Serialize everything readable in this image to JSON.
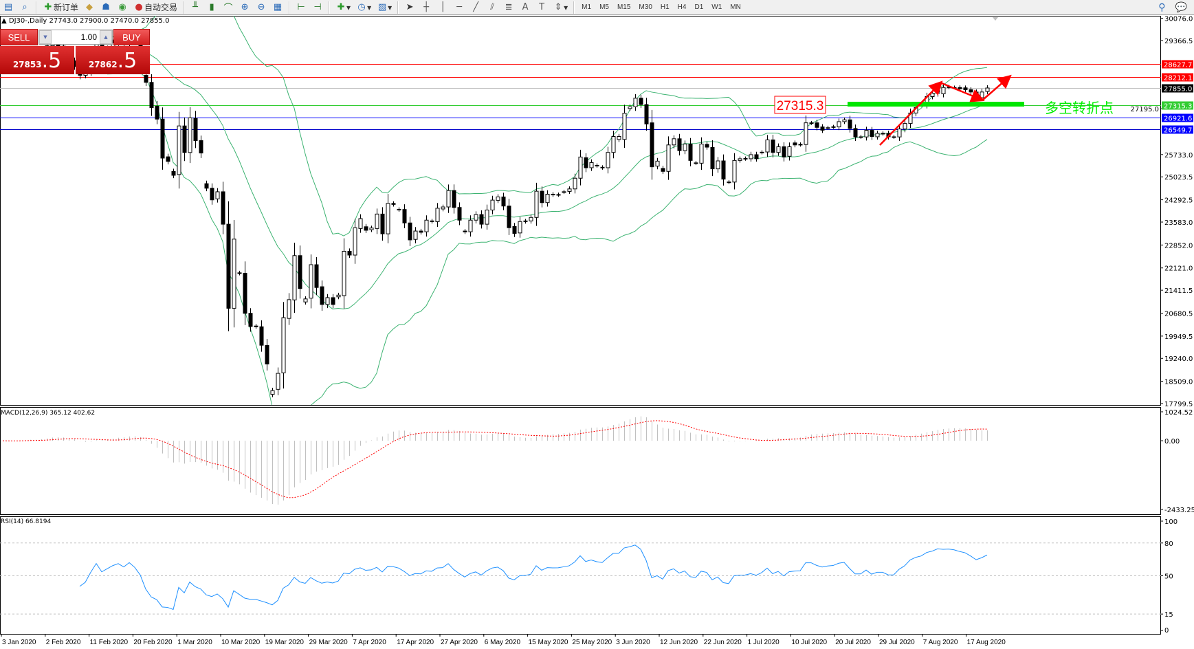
{
  "toolbar": {
    "new_order": "新订单",
    "auto_trading": "自动交易",
    "icons_left": [
      "new-chart-icon",
      "navigator-icon"
    ],
    "icons_mid": [
      "metaeditor-icon",
      "terminal-icon",
      "signals-icon"
    ],
    "icons_chart": [
      "bar-chart-icon",
      "candlestick-icon",
      "line-chart-icon",
      "zoom-in-icon",
      "zoom-out-icon",
      "tile-windows-icon",
      "autoscroll-icon",
      "chart-shift-icon",
      "indicators-icon",
      "periods-icon",
      "templates-icon",
      "cursor-icon",
      "crosshair-icon",
      "vertical-line-icon",
      "horizontal-line-icon",
      "trendline-icon",
      "equidistant-channel-icon",
      "fibonacci-icon",
      "text-icon",
      "text-label-icon",
      "arrows-icon"
    ],
    "timeframes": [
      "M1",
      "M5",
      "M15",
      "M30",
      "H1",
      "H4",
      "D1",
      "W1",
      "MN"
    ],
    "icons_right": [
      "search-icon",
      "chat-icon"
    ]
  },
  "chart": {
    "title": "DJ30-,Daily  27743.0 27900.0 27470.0 27855.0"
  },
  "trade_panel": {
    "sell_label": "SELL",
    "buy_label": "BUY",
    "lot": "1.00",
    "sell_main": "27853",
    "sell_frac": ".5",
    "buy_main": "27862",
    "buy_frac": ".5"
  },
  "price_axis": {
    "range": [
      17799.5,
      30076.0
    ],
    "ticks": [
      "30076.0",
      "29366.5",
      "27195.0",
      "25733.0",
      "25023.5",
      "24292.5",
      "23583.0",
      "22852.0",
      "22121.0",
      "21411.5",
      "20680.5",
      "19949.5",
      "19240.0",
      "18509.0",
      "17799.5"
    ]
  },
  "levels": [
    {
      "value": "28627.7",
      "color": "#ff0000",
      "label_bg": "#ff0000"
    },
    {
      "value": "28212.1",
      "color": "#ff0000",
      "label_bg": "#ff0000"
    },
    {
      "value": "27855.0",
      "color": "#c0c0c0",
      "label_bg": "#000000"
    },
    {
      "value": "27315.3",
      "color": "#32cd32",
      "label_bg": "#32cd32"
    },
    {
      "value": "26921.6",
      "color": "#0000ff",
      "label_bg": "#0000ff"
    },
    {
      "value": "26549.7",
      "color": "#0000cc",
      "label_bg": "#0000ff"
    }
  ],
  "annotation": {
    "price_label": "27315.3",
    "text": "多空转折点",
    "text_color": "#00ee00",
    "arrow_color": "#ff0000",
    "zone_color": "#00e600"
  },
  "macd": {
    "title": "MACD(12,26,9) 365.12 402.62",
    "ticks": [
      "1024.52",
      "0.00",
      "-2433.25"
    ],
    "range": [
      -2433.25,
      1024.52
    ],
    "hist_color": "#c0c0c0",
    "signal_color": "#ff0000"
  },
  "rsi": {
    "title": "RSI(14) 66.8194",
    "ticks": [
      "100",
      "80",
      "50",
      "15",
      "0"
    ],
    "levels": [
      80,
      50,
      15
    ],
    "line_color": "#1e90ff"
  },
  "dates": [
    "3 Jan 2020",
    "2 Feb 2020",
    "11 Feb 2020",
    "20 Feb 2020",
    "1 Mar 2020",
    "10 Mar 2020",
    "19 Mar 2020",
    "29 Mar 2020",
    "7 Apr 2020",
    "17 Apr 2020",
    "27 Apr 2020",
    "6 May 2020",
    "15 May 2020",
    "25 May 2020",
    "3 Jun 2020",
    "12 Jun 2020",
    "22 Jun 2020",
    "1 Jul 2020",
    "10 Jul 2020",
    "20 Jul 2020",
    "29 Jul 2020",
    "7 Aug 2020",
    "17 Aug 2020"
  ],
  "chart_data": {
    "type": "candlestick",
    "symbol": "DJ30-",
    "timeframe": "Daily",
    "ylim": [
      17799.5,
      30076.0
    ],
    "indicators": [
      "Bollinger Bands(20,2)",
      "MACD(12,26,9)",
      "RSI(14)"
    ],
    "candles_open_close": [
      [
        28640,
        28700
      ],
      [
        28700,
        28580
      ],
      [
        28580,
        28745
      ],
      [
        28745,
        28740
      ],
      [
        28740,
        28910
      ],
      [
        28910,
        28960
      ],
      [
        28960,
        28820
      ],
      [
        28820,
        29030
      ],
      [
        29030,
        29200
      ],
      [
        29200,
        29350
      ],
      [
        29350,
        29190
      ],
      [
        29190,
        28990
      ],
      [
        28990,
        28720
      ],
      [
        28720,
        28540
      ],
      [
        28540,
        28260
      ],
      [
        28260,
        28400
      ],
      [
        28400,
        28810
      ],
      [
        28810,
        29290
      ],
      [
        29290,
        28920
      ],
      [
        28920,
        29100
      ],
      [
        29100,
        29290
      ],
      [
        29290,
        29420
      ],
      [
        29420,
        29280
      ],
      [
        29280,
        29550
      ],
      [
        29550,
        29350
      ],
      [
        29350,
        28990
      ],
      [
        28260,
        28034
      ],
      [
        28034,
        27227
      ],
      [
        27276,
        26864
      ],
      [
        26864,
        25621
      ],
      [
        25662,
        25516
      ],
      [
        25194,
        25073
      ],
      [
        25097,
        26646
      ],
      [
        26646,
        25799
      ],
      [
        25799,
        26904
      ],
      [
        26888,
        26178
      ],
      [
        26178,
        25783
      ],
      [
        24806,
        24661
      ],
      [
        24661,
        24290
      ],
      [
        24322,
        24548
      ],
      [
        24548,
        23515
      ],
      [
        23515,
        20836
      ],
      [
        20836,
        23039
      ],
      [
        21966,
        21950
      ],
      [
        21950,
        20675
      ],
      [
        20675,
        20255
      ],
      [
        20271,
        20247
      ],
      [
        20247,
        19658
      ],
      [
        19650,
        19060
      ],
      [
        18092,
        18213
      ],
      [
        18253,
        18762
      ],
      [
        18778,
        20537
      ],
      [
        20513,
        21110
      ],
      [
        21102,
        22514
      ],
      [
        22514,
        21465
      ],
      [
        21037,
        21134
      ],
      [
        21159,
        22224
      ],
      [
        22224,
        21498
      ],
      [
        21522,
        20957
      ],
      [
        20957,
        21175
      ],
      [
        21175,
        20957
      ],
      [
        21199,
        21255
      ],
      [
        21239,
        22652
      ],
      [
        22652,
        22531
      ],
      [
        22531,
        23402
      ],
      [
        23378,
        23693
      ],
      [
        23434,
        23321
      ],
      [
        23338,
        23394
      ],
      [
        23378,
        23838
      ],
      [
        23838,
        23208
      ],
      [
        23208,
        24177
      ],
      [
        24177,
        24145
      ],
      [
        23990,
        23975
      ],
      [
        23983,
        23555
      ],
      [
        23555,
        23015
      ],
      [
        23031,
        23297
      ],
      [
        23297,
        23257
      ],
      [
        23273,
        23644
      ],
      [
        23620,
        23600
      ],
      [
        23596,
        24024
      ],
      [
        24000,
        24064
      ],
      [
        24064,
        24588
      ],
      [
        24588,
        24048
      ],
      [
        24048,
        23644
      ],
      [
        23297,
        23270
      ],
      [
        23273,
        23644
      ],
      [
        23644,
        23822
      ],
      [
        23822,
        23515
      ],
      [
        23515,
        23967
      ],
      [
        23967,
        24282
      ],
      [
        24275,
        24384
      ],
      [
        24384,
        24093
      ],
      [
        24093,
        23403
      ],
      [
        23440,
        23222
      ],
      [
        23236,
        23599
      ],
      [
        23599,
        23620
      ],
      [
        23620,
        23730
      ],
      [
        23730,
        24566
      ],
      [
        24566,
        24202
      ],
      [
        24202,
        24470
      ],
      [
        24470,
        24450
      ],
      [
        24450,
        24460
      ],
      [
        24540,
        24550
      ],
      [
        24560,
        24639
      ],
      [
        24639,
        24980
      ],
      [
        24980,
        25656
      ],
      [
        25634,
        25314
      ],
      [
        25314,
        25480
      ],
      [
        25390,
        25380
      ],
      [
        25314,
        25330
      ],
      [
        25314,
        25801
      ],
      [
        25801,
        26310
      ],
      [
        26215,
        26310
      ],
      [
        26215,
        27051
      ],
      [
        27200,
        27254
      ],
      [
        27254,
        27530
      ],
      [
        27530,
        27327
      ],
      [
        27327,
        26709
      ],
      [
        26745,
        25343
      ],
      [
        25365,
        25525
      ],
      [
        25292,
        25198
      ],
      [
        25198,
        26041
      ],
      [
        26041,
        26237
      ],
      [
        26237,
        25859
      ],
      [
        25859,
        26070
      ],
      [
        26070,
        25547
      ],
      [
        25460,
        25470
      ],
      [
        25459,
        26070
      ],
      [
        26060,
        25970
      ],
      [
        25961,
        25278
      ],
      [
        25278,
        25532
      ],
      [
        25532,
        24951
      ],
      [
        24860,
        24850
      ],
      [
        24857,
        25547
      ],
      [
        25547,
        25600
      ],
      [
        25600,
        25610
      ],
      [
        25600,
        25730
      ],
      [
        25730,
        25600
      ],
      [
        25800,
        25810
      ],
      [
        25816,
        26201
      ],
      [
        26201,
        25801
      ],
      [
        25801,
        25983
      ],
      [
        25983,
        25656
      ],
      [
        25680,
        25983
      ],
      [
        26106,
        26041
      ],
      [
        26050,
        26060
      ],
      [
        26055,
        26745
      ],
      [
        26740,
        26745
      ],
      [
        26745,
        26600
      ],
      [
        26615,
        26510
      ],
      [
        26590,
        26585
      ],
      [
        26615,
        26620
      ],
      [
        26615,
        26782
      ],
      [
        26782,
        26840
      ],
      [
        26840,
        26564
      ],
      [
        26564,
        26295
      ],
      [
        26300,
        26295
      ],
      [
        26295,
        26506
      ],
      [
        26506,
        26310
      ],
      [
        26300,
        26410
      ],
      [
        26400,
        26410
      ],
      [
        26410,
        26300
      ],
      [
        26300,
        26295
      ],
      [
        26295,
        26549
      ],
      [
        26549,
        26724
      ],
      [
        26724,
        27058
      ],
      [
        27058,
        27232
      ],
      [
        27320,
        27327
      ],
      [
        27327,
        27581
      ],
      [
        27581,
        27690
      ],
      [
        27690,
        27886
      ],
      [
        27668,
        27872
      ],
      [
        27880,
        27890
      ],
      [
        27872,
        27870
      ],
      [
        27870,
        27830
      ],
      [
        27860,
        27800
      ],
      [
        27800,
        27727
      ],
      [
        27727,
        27640
      ],
      [
        27545,
        27727
      ],
      [
        27743,
        27855
      ]
    ]
  }
}
